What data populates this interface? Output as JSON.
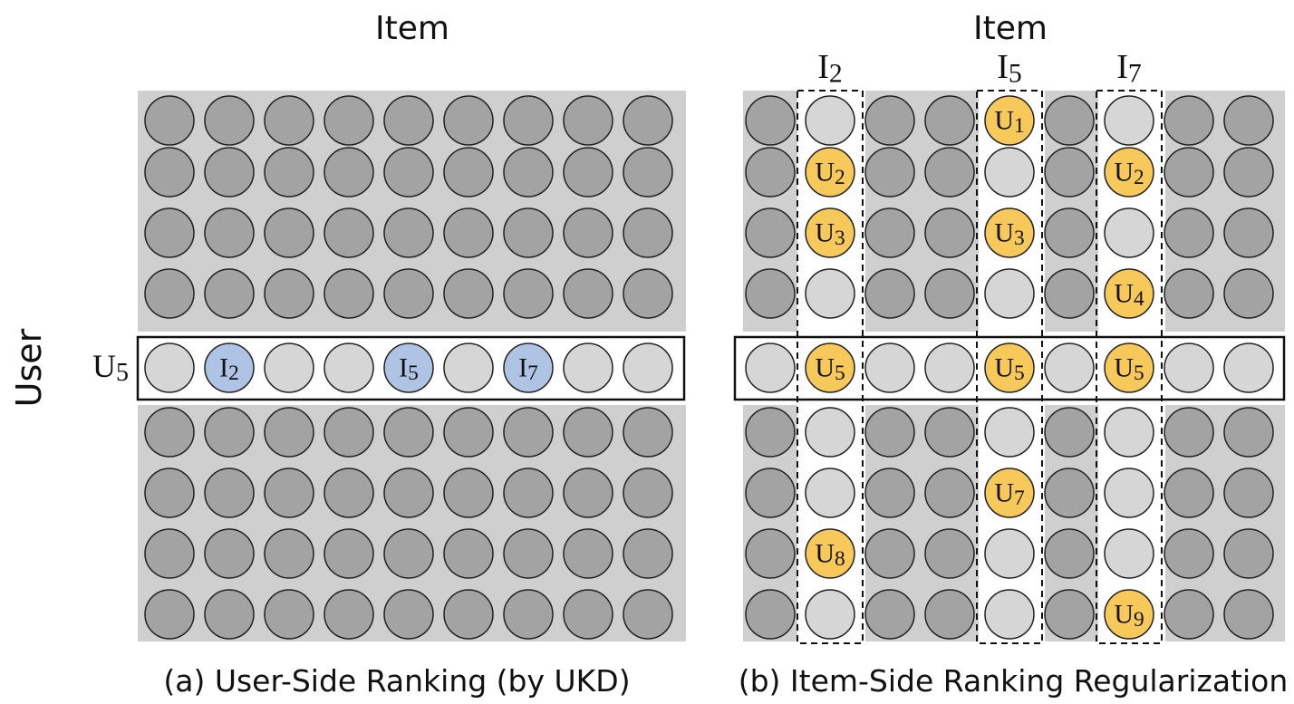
{
  "panel_a": {
    "header": "Item",
    "side_label": "User",
    "row_label": "U5",
    "caption": "(a) User-Side Ranking (by UKD)",
    "grid": {
      "rows": 9,
      "cols": 9,
      "highlight_row": 4
    },
    "highlighted_items": [
      {
        "col": 1,
        "label": "I2"
      },
      {
        "col": 4,
        "label": "I5"
      },
      {
        "col": 6,
        "label": "I7"
      }
    ]
  },
  "panel_b": {
    "header": "Item",
    "caption": "(b) Item-Side Ranking Regularization",
    "grid": {
      "rows": 9,
      "cols": 9,
      "highlight_row": 4
    },
    "columns": [
      {
        "col": 1,
        "label": "I2",
        "users": [
          {
            "row": 1,
            "label": "U2"
          },
          {
            "row": 2,
            "label": "U3"
          },
          {
            "row": 4,
            "label": "U5"
          },
          {
            "row": 7,
            "label": "U8"
          }
        ]
      },
      {
        "col": 4,
        "label": "I5",
        "users": [
          {
            "row": 0,
            "label": "U1"
          },
          {
            "row": 2,
            "label": "U3"
          },
          {
            "row": 4,
            "label": "U5"
          },
          {
            "row": 6,
            "label": "U7"
          }
        ]
      },
      {
        "col": 6,
        "label": "I7",
        "users": [
          {
            "row": 1,
            "label": "U2"
          },
          {
            "row": 3,
            "label": "U4"
          },
          {
            "row": 4,
            "label": "U5"
          },
          {
            "row": 8,
            "label": "U9"
          }
        ]
      }
    ]
  },
  "colors": {
    "background_gray": "#cfcfcf",
    "dark_circle": "#a3a3a3",
    "light_circle": "#d6d6d6",
    "item_blue": "#afc4e4",
    "user_yellow": "#f7c95a",
    "stroke": "#222222"
  }
}
